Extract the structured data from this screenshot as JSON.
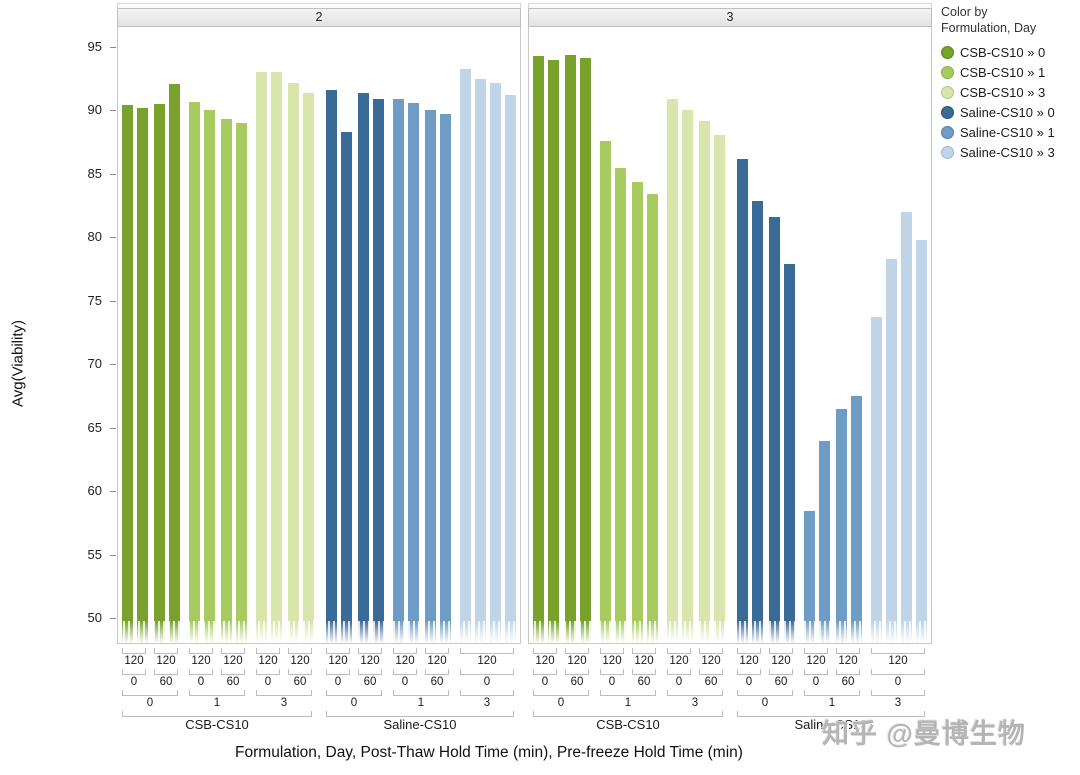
{
  "watermark": {
    "text": "知乎 @曼博生物",
    "color": "#b5b5b5"
  },
  "legend": {
    "title_line1": "Color by",
    "title_line2": "Formulation, Day",
    "items": [
      {
        "label": "CSB-CS10 » 0",
        "color": "#79A22C",
        "border": "#5E8420"
      },
      {
        "label": "CSB-CS10 » 1",
        "color": "#A7CB5E",
        "border": "#86AC3F"
      },
      {
        "label": "CSB-CS10 » 3",
        "color": "#D8E5AB",
        "border": "#B2C884"
      },
      {
        "label": "Saline-CS10 » 0",
        "color": "#3A6A96",
        "border": "#2A527A"
      },
      {
        "label": "Saline-CS10 » 1",
        "color": "#6F9CC4",
        "border": "#527FAA"
      },
      {
        "label": "Saline-CS10 » 3",
        "color": "#C0D4E8",
        "border": "#9AB7D4"
      }
    ]
  },
  "chart_data": {
    "type": "bar",
    "title": "",
    "ylabel": "Avg(Viability)",
    "xlabel": "Formulation, Day, Post-Thaw Hold Time (min), Pre-freeze Hold Time (min)",
    "ylim": [
      50,
      95
    ],
    "yticks": [
      95,
      90,
      85,
      80,
      75,
      70,
      65,
      60,
      55,
      50
    ],
    "grid": false,
    "legend_position": "top-right",
    "colors": {
      "CSB-CS10": {
        "0": "#79A22C",
        "1": "#A7CB5E",
        "3": "#D8E5AB"
      },
      "Saline-CS10": {
        "0": "#3A6A96",
        "1": "#6F9CC4",
        "3": "#C0D4E8"
      }
    },
    "panels": [
      {
        "label": "2",
        "formulations": [
          {
            "name": "CSB-CS10",
            "days": [
              {
                "day": "0",
                "leaves": [
                  {
                    "post_thaw": "0",
                    "pre_freeze": "120",
                    "values": [
                      90.6,
                      90.4
                    ]
                  },
                  {
                    "post_thaw": "60",
                    "pre_freeze": "120",
                    "values": [
                      90.7,
                      92.3
                    ]
                  }
                ]
              },
              {
                "day": "1",
                "leaves": [
                  {
                    "post_thaw": "0",
                    "pre_freeze": "120",
                    "values": [
                      90.9,
                      90.2
                    ]
                  },
                  {
                    "post_thaw": "60",
                    "pre_freeze": "120",
                    "values": [
                      89.5,
                      89.2
                    ]
                  }
                ]
              },
              {
                "day": "3",
                "leaves": [
                  {
                    "post_thaw": "0",
                    "pre_freeze": "120",
                    "values": [
                      93.2,
                      93.2
                    ]
                  },
                  {
                    "post_thaw": "60",
                    "pre_freeze": "120",
                    "values": [
                      92.4,
                      91.6
                    ]
                  }
                ]
              }
            ]
          },
          {
            "name": "Saline-CS10",
            "days": [
              {
                "day": "0",
                "leaves": [
                  {
                    "post_thaw": "0",
                    "pre_freeze": "120",
                    "values": [
                      91.8,
                      88.5
                    ]
                  },
                  {
                    "post_thaw": "60",
                    "pre_freeze": "120",
                    "values": [
                      91.6,
                      91.1
                    ]
                  }
                ]
              },
              {
                "day": "1",
                "leaves": [
                  {
                    "post_thaw": "0",
                    "pre_freeze": "120",
                    "values": [
                      91.1,
                      90.8
                    ]
                  },
                  {
                    "post_thaw": "60",
                    "pre_freeze": "120",
                    "values": [
                      90.2,
                      89.9
                    ]
                  }
                ]
              },
              {
                "day": "3",
                "leaves": [
                  {
                    "post_thaw": "0",
                    "pre_freeze": "120",
                    "values": [
                      93.5,
                      92.7,
                      92.4,
                      91.4
                    ]
                  }
                ]
              }
            ]
          }
        ]
      },
      {
        "label": "3",
        "formulations": [
          {
            "name": "CSB-CS10",
            "days": [
              {
                "day": "0",
                "leaves": [
                  {
                    "post_thaw": "0",
                    "pre_freeze": "120",
                    "values": [
                      94.5,
                      94.2
                    ]
                  },
                  {
                    "post_thaw": "60",
                    "pre_freeze": "120",
                    "values": [
                      94.6,
                      94.3
                    ]
                  }
                ]
              },
              {
                "day": "1",
                "leaves": [
                  {
                    "post_thaw": "0",
                    "pre_freeze": "120",
                    "values": [
                      87.8,
                      85.7
                    ]
                  },
                  {
                    "post_thaw": "60",
                    "pre_freeze": "120",
                    "values": [
                      84.6,
                      83.6
                    ]
                  }
                ]
              },
              {
                "day": "3",
                "leaves": [
                  {
                    "post_thaw": "0",
                    "pre_freeze": "120",
                    "values": [
                      91.1,
                      90.2
                    ]
                  },
                  {
                    "post_thaw": "60",
                    "pre_freeze": "120",
                    "values": [
                      89.4,
                      88.3
                    ]
                  }
                ]
              }
            ]
          },
          {
            "name": "Saline-CS10",
            "days": [
              {
                "day": "0",
                "leaves": [
                  {
                    "post_thaw": "0",
                    "pre_freeze": "120",
                    "values": [
                      86.4,
                      83.1
                    ]
                  },
                  {
                    "post_thaw": "60",
                    "pre_freeze": "120",
                    "values": [
                      81.8,
                      78.1
                    ]
                  }
                ]
              },
              {
                "day": "1",
                "leaves": [
                  {
                    "post_thaw": "0",
                    "pre_freeze": "120",
                    "values": [
                      58.7,
                      64.2
                    ]
                  },
                  {
                    "post_thaw": "60",
                    "pre_freeze": "120",
                    "values": [
                      66.7,
                      67.7
                    ]
                  }
                ]
              },
              {
                "day": "3",
                "leaves": [
                  {
                    "post_thaw": "0",
                    "pre_freeze": "120",
                    "values": [
                      73.9,
                      78.5,
                      82.2,
                      80.0
                    ]
                  }
                ]
              }
            ]
          }
        ]
      }
    ]
  }
}
